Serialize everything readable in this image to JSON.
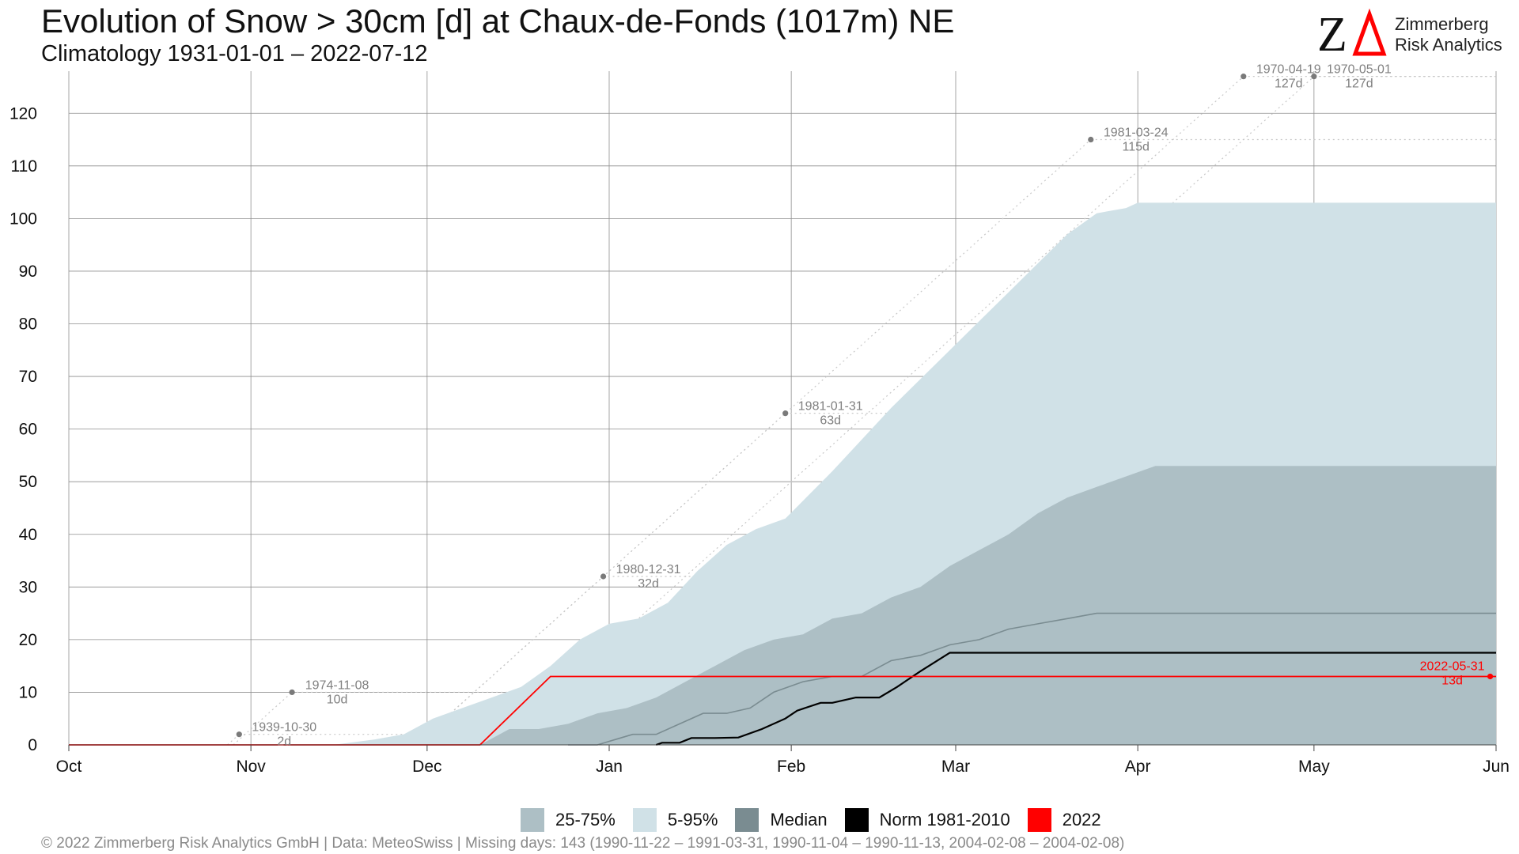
{
  "header": {
    "title": "Evolution of Snow > 30cm [d] at Chaux-de-Fonds (1017m) NE",
    "subtitle": "Climatology 1931-01-01 – 2022-07-12"
  },
  "logo": {
    "mark": "ZΔ",
    "line1": "Zimmerberg",
    "line2": "Risk Analytics"
  },
  "legend": [
    {
      "label": "25-75%",
      "color": "#adbfc5"
    },
    {
      "label": "5-95%",
      "color": "#d0e1e7"
    },
    {
      "label": "Median",
      "color": "#7a8c91"
    },
    {
      "label": "Norm 1981-2010",
      "color": "#000000"
    },
    {
      "label": "2022",
      "color": "#ff0000"
    }
  ],
  "footer": "©  2022 Zimmerberg Risk Analytics GmbH | Data: MeteoSwiss | Missing days: 143 (1990-11-22 – 1991-03-31, 1990-11-04 – 1990-11-13, 2004-02-08 – 2004-02-08)",
  "chart_data": {
    "type": "area",
    "x_unit": "day of season (0 = Oct 1)",
    "xlim": [
      0,
      243
    ],
    "ylim": [
      0,
      128
    ],
    "month_ticks": [
      {
        "label": "Oct",
        "x": 0
      },
      {
        "label": "Nov",
        "x": 31
      },
      {
        "label": "Dec",
        "x": 61
      },
      {
        "label": "Jan",
        "x": 92
      },
      {
        "label": "Feb",
        "x": 123
      },
      {
        "label": "Mar",
        "x": 151
      },
      {
        "label": "Apr",
        "x": 182
      },
      {
        "label": "May",
        "x": 212
      },
      {
        "label": "Jun",
        "x": 243
      }
    ],
    "y_ticks": [
      0,
      10,
      20,
      30,
      40,
      50,
      60,
      70,
      80,
      90,
      100,
      110,
      120
    ],
    "grid": true,
    "series": [
      {
        "name": "5-95%",
        "kind": "band",
        "color": "#d0e1e7",
        "x": [
          45,
          52,
          57,
          62,
          67,
          72,
          77,
          82,
          87,
          92,
          97,
          102,
          107,
          112,
          117,
          122,
          130,
          140,
          150,
          160,
          170,
          175,
          180,
          182,
          243
        ],
        "upper": [
          0,
          1,
          2,
          5,
          7,
          9,
          11,
          15,
          20,
          23,
          24,
          27,
          33,
          38,
          41,
          43,
          52,
          64,
          75,
          86,
          97,
          101,
          102,
          103,
          103
        ],
        "lower": [
          0,
          0,
          0,
          0,
          0,
          0,
          0,
          0,
          0,
          0,
          0,
          0,
          0,
          0,
          0,
          2,
          2,
          2,
          2,
          5,
          6,
          7,
          7,
          8,
          8
        ]
      },
      {
        "name": "25-75%",
        "kind": "band",
        "color": "#adbfc5",
        "x": [
          70,
          75,
          80,
          85,
          90,
          95,
          100,
          105,
          110,
          115,
          120,
          125,
          130,
          135,
          140,
          145,
          150,
          155,
          160,
          165,
          170,
          175,
          180,
          185,
          190,
          243
        ],
        "upper": [
          0,
          3,
          3,
          4,
          6,
          7,
          9,
          12,
          15,
          18,
          20,
          21,
          24,
          25,
          28,
          30,
          34,
          37,
          40,
          44,
          47,
          49,
          51,
          53,
          53,
          53
        ],
        "lower": [
          0,
          0,
          0,
          0,
          0,
          0,
          0,
          0,
          0,
          0,
          0,
          0,
          0,
          0,
          0,
          0,
          0,
          0,
          0,
          0,
          0,
          0,
          0,
          0,
          0,
          0
        ]
      },
      {
        "name": "Median",
        "kind": "line",
        "color": "#7a8c91",
        "x": [
          85,
          90,
          93,
          96,
          100,
          104,
          108,
          112,
          116,
          120,
          125,
          130,
          135,
          140,
          145,
          150,
          155,
          160,
          165,
          170,
          175,
          243
        ],
        "y": [
          0,
          0,
          1,
          2,
          2,
          4,
          6,
          6,
          7,
          10,
          12,
          13,
          13,
          16,
          17,
          19,
          20,
          22,
          23,
          24,
          25,
          25
        ]
      },
      {
        "name": "Norm 1981-2010",
        "kind": "line",
        "color": "#000000",
        "x": [
          100,
          101,
          104,
          106,
          110,
          114,
          118,
          122,
          124,
          128,
          130,
          134,
          138,
          141,
          145,
          150,
          243
        ],
        "y": [
          0,
          0.4,
          0.4,
          1.3,
          1.3,
          1.4,
          3,
          5,
          6.5,
          8,
          8,
          9,
          9,
          11,
          14,
          17.5,
          17.5
        ]
      },
      {
        "name": "2022",
        "kind": "line",
        "color": "#ff0000",
        "x": [
          0,
          70,
          82,
          243
        ],
        "y": [
          0,
          0,
          13,
          13
        ]
      }
    ],
    "annotations": [
      {
        "date": "1939-10-30",
        "value": "2d",
        "x": 29,
        "y": 2,
        "color": "#808080"
      },
      {
        "date": "1974-11-08",
        "value": "10d",
        "x": 38,
        "y": 10,
        "color": "#808080"
      },
      {
        "date": "1980-12-31",
        "value": "32d",
        "x": 91,
        "y": 32,
        "color": "#808080"
      },
      {
        "date": "1981-01-31",
        "value": "63d",
        "x": 122,
        "y": 63,
        "color": "#808080"
      },
      {
        "date": "1981-03-24",
        "value": "115d",
        "x": 174,
        "y": 115,
        "color": "#808080"
      },
      {
        "date": "1970-04-19",
        "value": "127d",
        "x": 200,
        "y": 127,
        "color": "#808080"
      },
      {
        "date": "1970-05-01",
        "value": "127d",
        "x": 212,
        "y": 127,
        "color": "#808080"
      },
      {
        "date": "2022-05-31",
        "value": "13d",
        "x": 242,
        "y": 13,
        "color": "#ff0000"
      }
    ]
  }
}
